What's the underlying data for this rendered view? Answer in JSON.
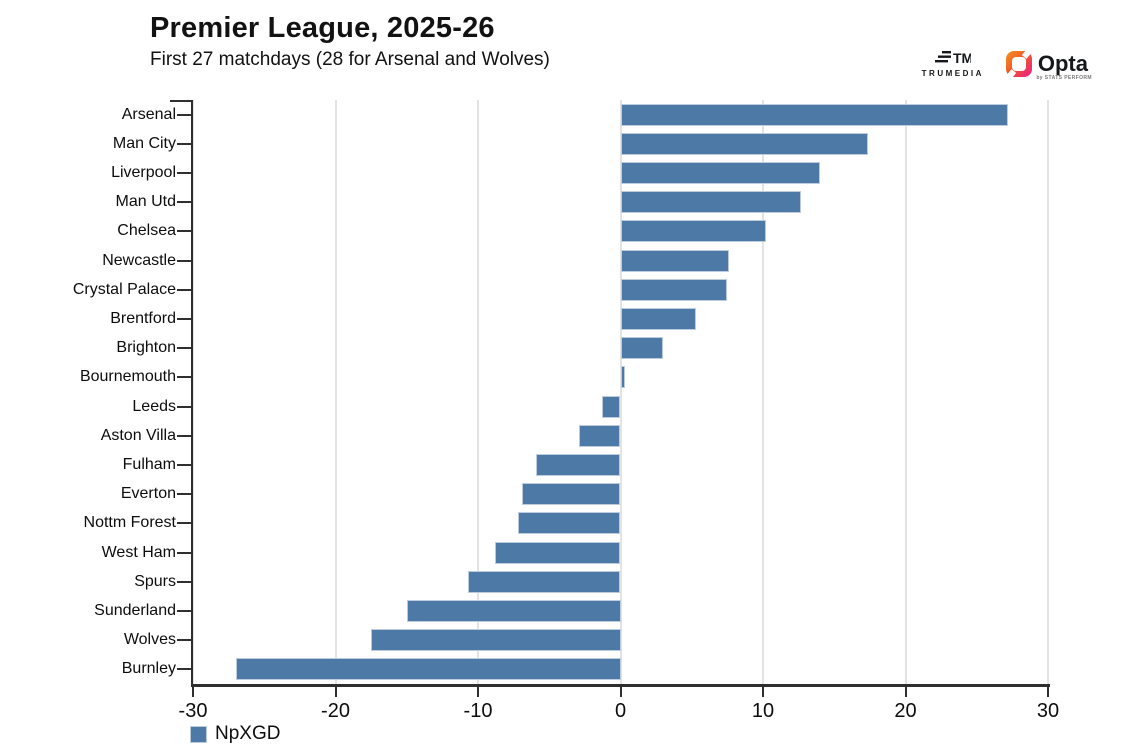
{
  "header": {
    "title": "Premier League, 2025-26",
    "subtitle": "First 27 matchdays (28 for Arsenal and Wolves)"
  },
  "branding": {
    "trumedia_mark": "TM",
    "trumedia_label": "TRUMEDIA",
    "opta_label": "Opta",
    "opta_sublabel": "by STATS PERFORM"
  },
  "legend": {
    "label": "NpXGD"
  },
  "colors": {
    "bar": "#4d79a7",
    "bar_border": "#bccbdd",
    "gridline": "#e3e3e3",
    "axis": "#2f2f2f",
    "opta_gradient_start": "#f7941d",
    "opta_gradient_end": "#ec1c8d"
  },
  "chart_data": {
    "type": "bar",
    "orientation": "horizontal",
    "title": "Premier League, 2025-26",
    "subtitle": "First 27 matchdays (28 for Arsenal and Wolves)",
    "series_name": "NpXGD",
    "categories": [
      "Arsenal",
      "Man City",
      "Liverpool",
      "Man Utd",
      "Chelsea",
      "Newcastle",
      "Crystal Palace",
      "Brentford",
      "Brighton",
      "Bournemouth",
      "Leeds",
      "Aston Villa",
      "Fulham",
      "Everton",
      "Nottm Forest",
      "West Ham",
      "Spurs",
      "Sunderland",
      "Wolves",
      "Burnley"
    ],
    "values": [
      27.2,
      17.4,
      14.0,
      12.7,
      10.2,
      7.6,
      7.5,
      5.3,
      3.0,
      0.3,
      -1.3,
      -2.9,
      -5.9,
      -6.9,
      -7.2,
      -8.8,
      -10.7,
      -15.0,
      -17.5,
      -27.0
    ],
    "xlim": [
      -30,
      30
    ],
    "xticks": [
      -30,
      -20,
      -10,
      0,
      10,
      20,
      30
    ],
    "grid": "vertical",
    "legend_position": "bottom-left"
  }
}
